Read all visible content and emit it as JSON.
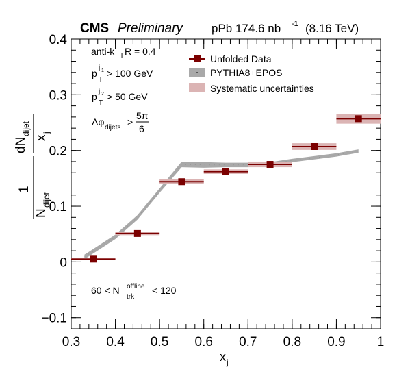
{
  "header": {
    "experiment": "CMS",
    "status": "Preliminary",
    "lumi_prefix": "pPb 174.6 nb",
    "lumi_exp": "-1",
    "energy": "(8.16 TeV)"
  },
  "annotations": {
    "jet_algo_a": "anti-k",
    "jet_algo_sub": "T",
    "jet_algo_b": " R = 0.4",
    "pt1_p": "p",
    "pt1_sup": "j",
    "pt1_sup2": "1",
    "pt1_sub": "T",
    "pt1_cut": "> 100 GeV",
    "pt2_p": "p",
    "pt2_sup": "j",
    "pt2_sup2": "2",
    "pt2_sub": "T",
    "pt2_cut": "> 50 GeV",
    "dphi_sym": "Δφ",
    "dphi_sub": "dijets",
    "dphi_gt": ">",
    "dphi_num": "5π",
    "dphi_den": "6",
    "mult_lo": "60 < N",
    "mult_sup": "offline",
    "mult_sub": "trk",
    "mult_hi": "< 120"
  },
  "legend": {
    "data": "Unfolded Data",
    "mc": "PYTHIA8+EPOS",
    "syst": "Systematic uncertainties"
  },
  "axes": {
    "xlabel": "x",
    "xlabel_sub": "j",
    "ylabel_one": "1",
    "ylabel_N": "N",
    "ylabel_N_sub": "dijet",
    "ylabel_dN": "dN",
    "ylabel_dN_sub": "dijet",
    "ylabel_dx": "x",
    "ylabel_dx_sub": "j"
  },
  "colors": {
    "data": "#7b0000",
    "mc_band": "#a9a9a9",
    "syst": "#dbb4b4"
  },
  "chart_data": {
    "type": "scatter",
    "xlim": [
      0.3,
      1.0
    ],
    "ylim": [
      -0.12,
      0.4
    ],
    "xticks": [
      0.3,
      0.4,
      0.5,
      0.6,
      0.7,
      0.8,
      0.9,
      1.0
    ],
    "xtick_labels": [
      "0.3",
      "0.4",
      "0.5",
      "0.6",
      "0.7",
      "0.8",
      "0.9",
      "1"
    ],
    "yticks": [
      -0.1,
      0,
      0.1,
      0.2,
      0.3,
      0.4
    ],
    "ytick_labels": [
      "−0.1",
      "0",
      "0.1",
      "0.2",
      "0.3",
      "0.4"
    ],
    "grid": false,
    "legend_position": "top-center",
    "series": [
      {
        "name": "Unfolded Data",
        "x": [
          0.35,
          0.45,
          0.55,
          0.65,
          0.75,
          0.85,
          0.95
        ],
        "x_low": [
          0.3,
          0.4,
          0.5,
          0.6,
          0.7,
          0.8,
          0.9
        ],
        "x_high": [
          0.4,
          0.5,
          0.6,
          0.7,
          0.8,
          0.9,
          1.0
        ],
        "y": [
          0.005,
          0.051,
          0.144,
          0.162,
          0.175,
          0.207,
          0.257
        ],
        "syst": [
          0.002,
          0.003,
          0.004,
          0.004,
          0.005,
          0.006,
          0.009
        ]
      },
      {
        "name": "PYTHIA8+EPOS",
        "x": [
          0.33,
          0.4,
          0.45,
          0.5,
          0.55,
          0.6,
          0.65,
          0.7,
          0.75,
          0.8,
          0.85,
          0.9,
          0.95
        ],
        "y": [
          0.009,
          0.045,
          0.08,
          0.128,
          0.175,
          0.174,
          0.174,
          0.174,
          0.176,
          0.182,
          0.187,
          0.192,
          0.199
        ],
        "width": [
          0.004,
          0.004,
          0.004,
          0.004,
          0.005,
          0.005,
          0.004,
          0.004,
          0.003,
          0.003,
          0.003,
          0.003,
          0.003
        ]
      }
    ],
    "title": "",
    "xlabel": "x_j",
    "ylabel": "1/N_dijet dN_dijet/x_j"
  }
}
